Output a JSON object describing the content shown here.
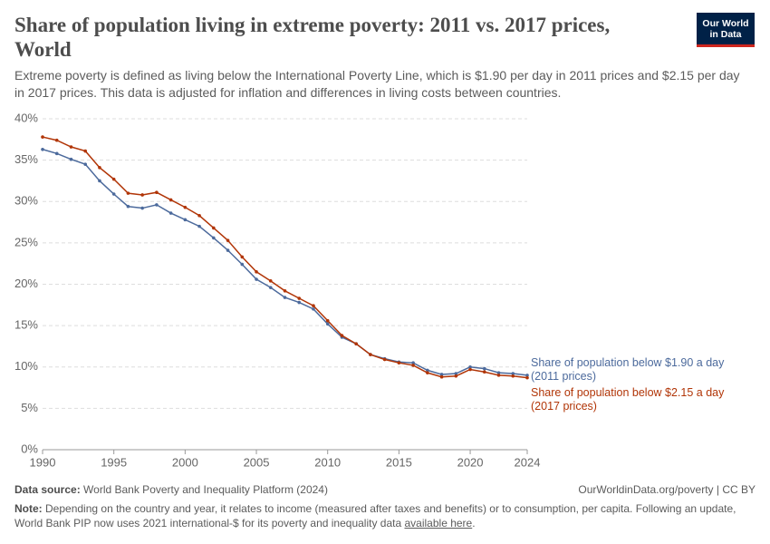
{
  "header": {
    "title": "Share of population living in extreme poverty: 2011 vs. 2017 prices, World",
    "subtitle": "Extreme poverty is defined as living below the International Poverty Line, which is $1.90 per day in 2011 prices and $2.15 per day in 2017 prices. This data is adjusted for inflation and differences in living costs between countries.",
    "logo": [
      "Our World",
      "in Data"
    ]
  },
  "chart_data": {
    "type": "line",
    "x": [
      1990,
      1991,
      1992,
      1993,
      1994,
      1995,
      1996,
      1997,
      1998,
      1999,
      2000,
      2001,
      2002,
      2003,
      2004,
      2005,
      2006,
      2007,
      2008,
      2009,
      2010,
      2011,
      2012,
      2013,
      2014,
      2015,
      2016,
      2017,
      2018,
      2019,
      2020,
      2021,
      2022,
      2023,
      2024
    ],
    "series": [
      {
        "name": "Share of population below $1.90 a day (2011 prices)",
        "color": "#4c6a9c",
        "values": [
          36.3,
          35.8,
          35.1,
          34.5,
          32.5,
          30.9,
          29.4,
          29.2,
          29.6,
          28.6,
          27.8,
          27.0,
          25.6,
          24.1,
          22.4,
          20.6,
          19.6,
          18.4,
          17.8,
          17.0,
          15.2,
          13.6,
          12.8,
          11.5,
          11.0,
          10.6,
          10.5,
          9.6,
          9.1,
          9.2,
          10.0,
          9.8,
          9.3,
          9.2,
          9.0
        ]
      },
      {
        "name": "Share of population below $2.15 a day (2017 prices)",
        "color": "#b13507",
        "values": [
          37.8,
          37.4,
          36.6,
          36.1,
          34.1,
          32.7,
          31.0,
          30.8,
          31.1,
          30.2,
          29.3,
          28.3,
          26.8,
          25.3,
          23.3,
          21.5,
          20.4,
          19.2,
          18.3,
          17.4,
          15.6,
          13.8,
          12.8,
          11.5,
          10.9,
          10.5,
          10.2,
          9.3,
          8.8,
          8.9,
          9.7,
          9.4,
          9.0,
          8.9,
          8.7
        ]
      }
    ],
    "xlim": [
      1990,
      2024
    ],
    "xticks": [
      1990,
      1995,
      2000,
      2005,
      2010,
      2015,
      2020,
      2024
    ],
    "ylim": [
      0,
      40
    ],
    "yticks": [
      {
        "value": 0,
        "label": "0%"
      },
      {
        "value": 5,
        "label": "5%"
      },
      {
        "value": 10,
        "label": "10%"
      },
      {
        "value": 15,
        "label": "15%"
      },
      {
        "value": 20,
        "label": "20%"
      },
      {
        "value": 25,
        "label": "25%"
      },
      {
        "value": 30,
        "label": "30%"
      },
      {
        "value": 35,
        "label": "35%"
      },
      {
        "value": 40,
        "label": "40%"
      }
    ],
    "grid": true
  },
  "footer": {
    "source_label": "Data source:",
    "source": "World Bank Poverty and Inequality Platform (2024)",
    "url": "OurWorldinData.org/poverty | CC BY",
    "note_label": "Note:",
    "note": "Depending on the country and year, it relates to income (measured after taxes and benefits) or to consumption, per capita. Following an update, World Bank PIP now uses 2021 international-$ for its poverty and inequality data",
    "note_link": "available here",
    "note_end": "."
  }
}
